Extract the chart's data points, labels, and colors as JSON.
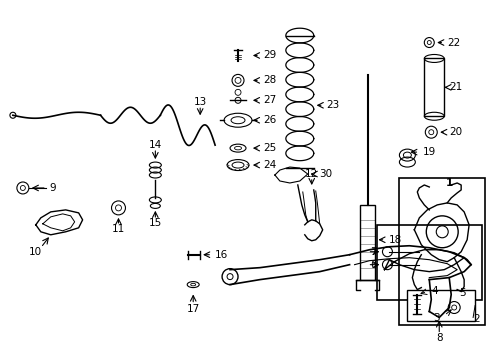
{
  "background_color": "#ffffff",
  "figure_width": 4.89,
  "figure_height": 3.6,
  "dpi": 100,
  "line_color": "#000000",
  "text_color": "#000000",
  "font_size": 7.5
}
